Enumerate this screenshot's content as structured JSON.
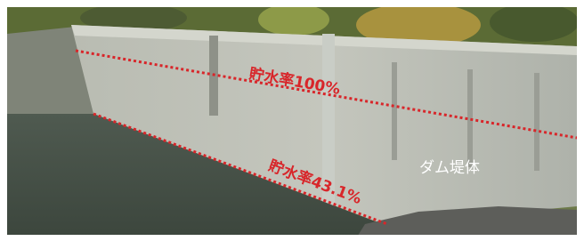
{
  "annotations": {
    "full_level": "貯水率100%",
    "current_level": "貯水率43.1%",
    "dam_body": "ダム堤体"
  }
}
